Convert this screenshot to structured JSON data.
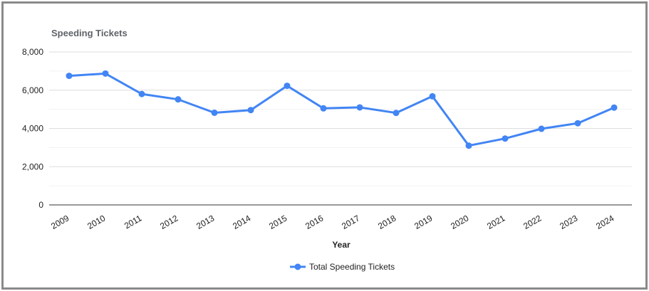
{
  "chart_data": {
    "type": "line",
    "title": "Speeding Tickets",
    "xlabel": "Year",
    "ylabel": "",
    "categories": [
      "2009",
      "2010",
      "2011",
      "2012",
      "2013",
      "2014",
      "2015",
      "2016",
      "2017",
      "2018",
      "2019",
      "2020",
      "2021",
      "2022",
      "2023",
      "2024"
    ],
    "series": [
      {
        "name": "Total Speeding Tickets",
        "color": "#4285f4",
        "values": [
          6750,
          6870,
          5800,
          5520,
          4820,
          4960,
          6230,
          5050,
          5100,
          4810,
          5680,
          3100,
          3470,
          3980,
          4270,
          5090
        ]
      }
    ],
    "ylim": [
      0,
      8000
    ],
    "yticks": [
      0,
      2000,
      4000,
      6000,
      8000
    ],
    "ytick_labels": [
      "0",
      "2,000",
      "4,000",
      "6,000",
      "8,000"
    ],
    "grid": true,
    "legend_position": "bottom"
  }
}
